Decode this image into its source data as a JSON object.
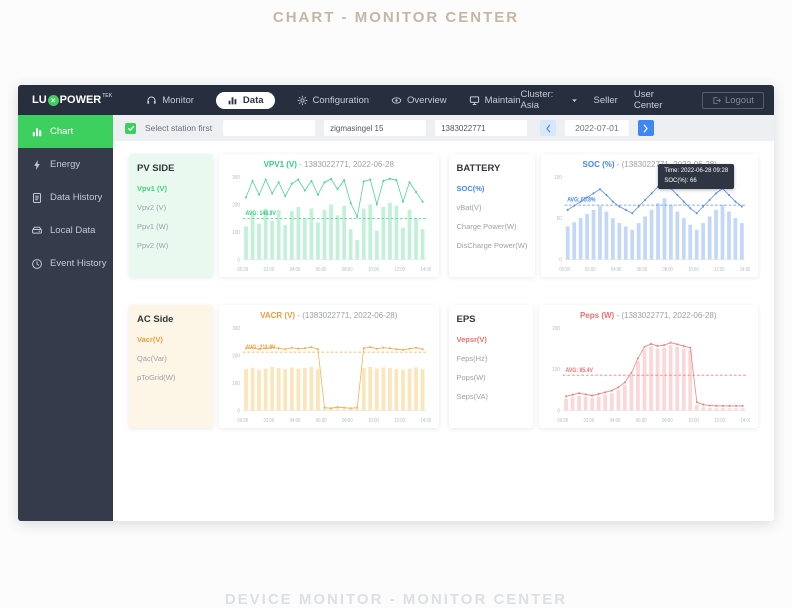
{
  "page": {
    "top_title": "CHART - MONITOR CENTER",
    "bottom_title": "DEVICE MONITOR - MONITOR CENTER"
  },
  "navbar": {
    "logo_prefix": "LU",
    "logo_mark": "×",
    "logo_suffix": "POWER",
    "logo_sup": "TEK",
    "items": [
      {
        "label": "Monitor",
        "icon": "monitor-icon",
        "active": false
      },
      {
        "label": "Data",
        "icon": "data-icon",
        "active": true
      },
      {
        "label": "Configuration",
        "icon": "configuration-icon",
        "active": false
      },
      {
        "label": "Overview",
        "icon": "overview-icon",
        "active": false
      },
      {
        "label": "Maintain",
        "icon": "maintain-icon",
        "active": false
      }
    ],
    "cluster_label": "Cluster: Asia",
    "seller_label": "Seller",
    "user_center_label": "User Center",
    "logout_label": "Logout"
  },
  "sidebar": {
    "items": [
      {
        "label": "Chart",
        "icon": "chart-icon",
        "active": true
      },
      {
        "label": "Energy",
        "icon": "energy-icon",
        "active": false
      },
      {
        "label": "Data History",
        "icon": "data-history-icon",
        "active": false
      },
      {
        "label": "Local Data",
        "icon": "local-data-icon",
        "active": false
      },
      {
        "label": "Event History",
        "icon": "event-history-icon",
        "active": false
      }
    ]
  },
  "toolbar": {
    "select_label": "Select station first",
    "station_value": "",
    "plant_value": "zigmasingel 15",
    "serial_value": "1383022771",
    "date_value": "2022-07-01"
  },
  "cards": [
    {
      "panel_title": "PV SIDE",
      "panel_bg": "#e9f9ef",
      "accent": "#3fd37c",
      "items": [
        {
          "label": "Vpv1 (V)",
          "active": true
        },
        {
          "label": "Vpv2 (V)",
          "active": false
        },
        {
          "label": "Ppv1 (W)",
          "active": false
        },
        {
          "label": "Ppv2 (W)",
          "active": false
        }
      ],
      "chart": {
        "type": "bar+line",
        "title_metric": "VPV1 (V)",
        "title_rest": "- 1383022771, 2022-06-28",
        "title_color": "#2fcf84",
        "bar_color": "#c3f0d9",
        "line_color": "#45d68f",
        "avg_label": "AVG: 148.8V",
        "avg_value": 148.8,
        "ymax": 300,
        "yticks": [
          0,
          100,
          200,
          300
        ],
        "x_labels": [
          "00:28",
          "02:00",
          "04:00",
          "06:00",
          "08:00",
          "10:00",
          "12:00",
          "14:00"
        ],
        "bars": [
          120,
          170,
          130,
          185,
          140,
          180,
          125,
          175,
          190,
          150,
          185,
          135,
          180,
          200,
          160,
          195,
          110,
          70,
          185,
          200,
          105,
          190,
          205,
          195,
          115,
          180,
          150,
          110
        ],
        "line": [
          225,
          285,
          235,
          290,
          240,
          280,
          230,
          275,
          290,
          250,
          285,
          235,
          280,
          292,
          255,
          288,
          205,
          155,
          283,
          290,
          200,
          285,
          293,
          288,
          210,
          280,
          245,
          210
        ]
      }
    },
    {
      "panel_title": "BATTERY",
      "panel_bg": "#ffffff",
      "accent": "#3e87f5",
      "items": [
        {
          "label": "SOC(%)",
          "active": true
        },
        {
          "label": "vBat(V)",
          "active": false
        },
        {
          "label": "Charge Power(W)",
          "active": false
        },
        {
          "label": "DisCharge Power(W)",
          "active": false
        }
      ],
      "chart": {
        "type": "bar+line",
        "title_metric": "SOC (%)",
        "title_rest": "- (1383022771, 2022-06-28)",
        "title_color": "#3e87f5",
        "bar_color": "#c3d7f8",
        "line_color": "#5b8ff0",
        "avg_label": "AVG: 65.8%",
        "avg_value": 65.8,
        "ymax": 100,
        "yticks": [
          0,
          50,
          100
        ],
        "x_labels": [
          "00:28",
          "02:00",
          "04:00",
          "06:00",
          "08:00",
          "10:00",
          "12:00",
          "14:00"
        ],
        "bars": [
          40,
          45,
          50,
          55,
          60,
          65,
          58,
          50,
          44,
          40,
          36,
          44,
          52,
          60,
          68,
          74,
          66,
          58,
          50,
          42,
          36,
          44,
          52,
          60,
          66,
          58,
          50,
          44
        ],
        "line": [
          60,
          65,
          70,
          75,
          80,
          85,
          78,
          70,
          64,
          60,
          56,
          64,
          72,
          80,
          88,
          94,
          86,
          78,
          70,
          62,
          56,
          64,
          72,
          80,
          86,
          78,
          70,
          64
        ],
        "tooltip": {
          "line1": "Time: 2022-06-28 09:28",
          "line2": "SOC(%): 66"
        }
      }
    },
    {
      "panel_title": "AC Side",
      "panel_bg": "#fdf6e7",
      "accent": "#ee9d3e",
      "items": [
        {
          "label": "Vacr(V)",
          "active": true
        },
        {
          "label": "Qac(Var)",
          "active": false
        },
        {
          "label": "pToGrid(W)",
          "active": false
        }
      ],
      "chart": {
        "type": "bar+line",
        "title_metric": "VACR (V)",
        "title_rest": "- (1383022771, 2022-06-28)",
        "title_color": "#ee9d3e",
        "bar_color": "#fbe5ba",
        "line_color": "#f3b04b",
        "avg_label": "AVG: 211.8V",
        "avg_value": 211.8,
        "ymax": 300,
        "yticks": [
          0,
          100,
          200,
          300
        ],
        "x_labels": [
          "00:28",
          "02:00",
          "04:00",
          "06:00",
          "08:00",
          "10:00",
          "12:00",
          "14:00"
        ],
        "bars": [
          150,
          155,
          148,
          152,
          158,
          154,
          150,
          156,
          152,
          154,
          158,
          150,
          6,
          5,
          7,
          6,
          5,
          6,
          154,
          158,
          152,
          156,
          154,
          150,
          148,
          152,
          156,
          150
        ],
        "line": [
          225,
          228,
          222,
          226,
          230,
          226,
          222,
          228,
          224,
          226,
          230,
          222,
          10,
          8,
          12,
          10,
          8,
          10,
          226,
          230,
          224,
          228,
          226,
          222,
          220,
          224,
          228,
          222
        ]
      }
    },
    {
      "panel_title": "EPS",
      "panel_bg": "#ffffff",
      "accent": "#f36d6d",
      "items": [
        {
          "label": "Vepsr(V)",
          "active": true
        },
        {
          "label": "Feps(Hz)",
          "active": false
        },
        {
          "label": "Pops(W)",
          "active": false
        },
        {
          "label": "Seps(VA)",
          "active": false
        }
      ],
      "chart": {
        "type": "bar+line",
        "title_metric": "Peps (W)",
        "title_rest": "- (1383022771, 2022-06-28)",
        "title_color": "#f36d6d",
        "bar_color": "#fbd7d7",
        "line_color": "#f28080",
        "avg_label": "AVG: 85.4V",
        "avg_value": 85.4,
        "ymax": 200,
        "yticks": [
          0,
          100,
          200
        ],
        "x_labels": [
          "00:28",
          "02:00",
          "04:00",
          "06:00",
          "08:00",
          "10:00",
          "12:00",
          "14:00"
        ],
        "bars": [
          28,
          32,
          36,
          33,
          30,
          34,
          38,
          42,
          50,
          62,
          85,
          120,
          148,
          155,
          150,
          152,
          158,
          154,
          150,
          146,
          14,
          8,
          6,
          5,
          5,
          5,
          5,
          5
        ],
        "line": [
          34,
          38,
          42,
          39,
          36,
          40,
          44,
          48,
          56,
          68,
          91,
          126,
          154,
          161,
          156,
          158,
          164,
          160,
          156,
          152,
          20,
          14,
          12,
          11,
          11,
          11,
          11,
          11
        ]
      }
    }
  ]
}
